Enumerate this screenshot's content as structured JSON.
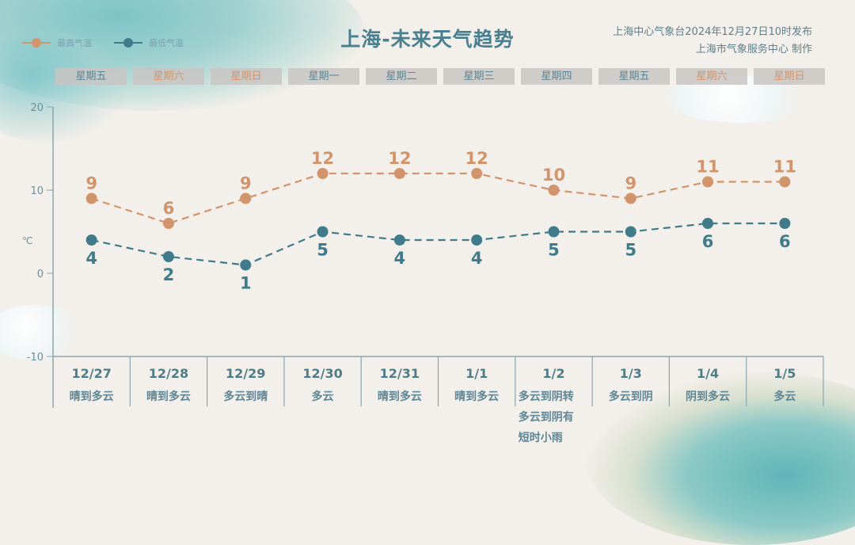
{
  "header": {
    "title": "上海-未来天气趋势",
    "issuer_line1": "上海中心气象台2024年12月27日10时发布",
    "issuer_line2": "上海市气象服务中心 制作"
  },
  "legend": {
    "high": {
      "label": "最高气温",
      "color": "#d2946b"
    },
    "low": {
      "label": "最低气温",
      "color": "#3f7b8b"
    }
  },
  "weekdays": [
    {
      "label": "星期五",
      "color": "#5a8694"
    },
    {
      "label": "星期六",
      "color": "#d2946b"
    },
    {
      "label": "星期日",
      "color": "#d2946b"
    },
    {
      "label": "星期一",
      "color": "#5a8694"
    },
    {
      "label": "星期二",
      "color": "#5a8694"
    },
    {
      "label": "星期三",
      "color": "#5a8694"
    },
    {
      "label": "星期四",
      "color": "#5a8694"
    },
    {
      "label": "星期五",
      "color": "#5a8694"
    },
    {
      "label": "星期六",
      "color": "#d2946b"
    },
    {
      "label": "星期日",
      "color": "#d2946b"
    }
  ],
  "axis": {
    "unit": "℃",
    "ticks": [
      "20",
      "10",
      "0",
      "-10"
    ]
  },
  "days": [
    {
      "date": "12/27",
      "weather": "晴到多云"
    },
    {
      "date": "12/28",
      "weather": "晴到多云"
    },
    {
      "date": "12/29",
      "weather": "多云到晴"
    },
    {
      "date": "12/30",
      "weather": "多云"
    },
    {
      "date": "12/31",
      "weather": "晴到多云"
    },
    {
      "date": "1/1",
      "weather": "晴到多云"
    },
    {
      "date": "1/2",
      "weather": "多云到阴转多云到阴有短时小雨"
    },
    {
      "date": "1/3",
      "weather": "多云到阴"
    },
    {
      "date": "1/4",
      "weather": "阴到多云"
    },
    {
      "date": "1/5",
      "weather": "多云"
    }
  ],
  "chart_data": {
    "type": "line",
    "title": "上海-未来天气趋势",
    "xlabel": "",
    "ylabel": "℃",
    "ylim": [
      -10,
      20
    ],
    "yticks": [
      -10,
      0,
      10,
      20
    ],
    "categories": [
      "12/27",
      "12/28",
      "12/29",
      "12/30",
      "12/31",
      "1/1",
      "1/2",
      "1/3",
      "1/4",
      "1/5"
    ],
    "series": [
      {
        "name": "最高气温",
        "color": "#d2946b",
        "style": "dashed",
        "values": [
          9,
          6,
          9,
          12,
          12,
          12,
          10,
          9,
          11,
          11
        ]
      },
      {
        "name": "最低气温",
        "color": "#3f7b8b",
        "style": "dashed",
        "values": [
          4,
          2,
          1,
          5,
          4,
          4,
          5,
          5,
          6,
          6
        ]
      }
    ],
    "legend_position": "top-left",
    "grid": false
  }
}
